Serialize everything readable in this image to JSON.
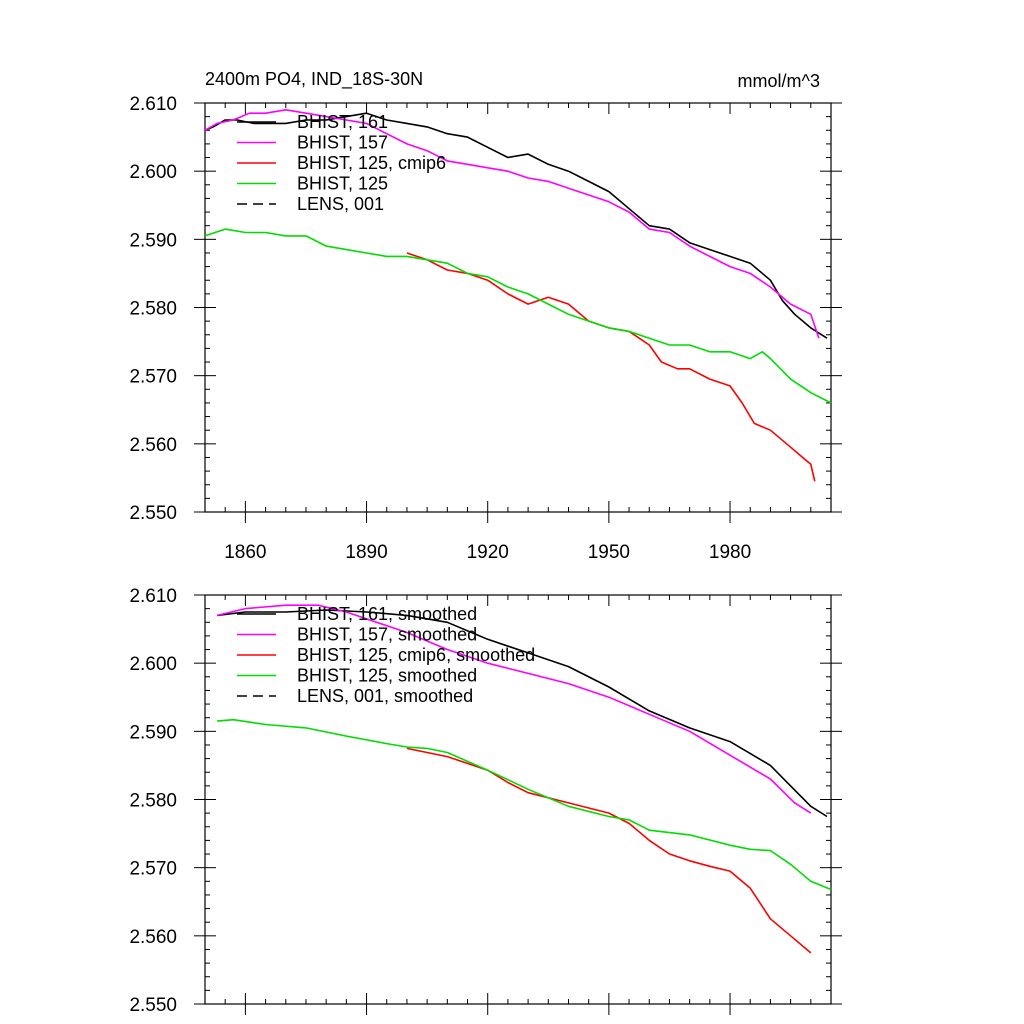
{
  "chart_data": [
    {
      "type": "line",
      "title": "2400m PO4, IND_18S-30N",
      "units": "mmol/m^3",
      "xlabel": "",
      "ylabel": "",
      "xlim": [
        1850,
        2005
      ],
      "ylim": [
        2.55,
        2.61
      ],
      "xticks": [
        1860,
        1890,
        1920,
        1950,
        1980
      ],
      "yticks": [
        "2.550",
        "2.560",
        "2.570",
        "2.580",
        "2.590",
        "2.600",
        "2.610"
      ],
      "show_xtick_labels": true,
      "grid": false,
      "legend_position": "top-left",
      "legend": [
        {
          "label": "BHIST, 161",
          "color": "#000000",
          "dash": "solid"
        },
        {
          "label": "BHIST, 157",
          "color": "#ff00ff",
          "dash": "solid"
        },
        {
          "label": "BHIST, 125, cmip6",
          "color": "#ff0000",
          "dash": "solid"
        },
        {
          "label": "BHIST, 125",
          "color": "#00dd00",
          "dash": "solid"
        },
        {
          "label": "LENS, 001",
          "color": "#000000",
          "dash": "dashed"
        }
      ],
      "series": [
        {
          "name": "BHIST, 161",
          "color": "#000000",
          "points": [
            [
              1850,
              2.606
            ],
            [
              1852,
              2.6065
            ],
            [
              1855,
              2.6075
            ],
            [
              1858,
              2.6075
            ],
            [
              1862,
              2.607
            ],
            [
              1866,
              2.607
            ],
            [
              1870,
              2.607
            ],
            [
              1875,
              2.6075
            ],
            [
              1880,
              2.6075
            ],
            [
              1885,
              2.608
            ],
            [
              1890,
              2.6085
            ],
            [
              1895,
              2.6075
            ],
            [
              1900,
              2.607
            ],
            [
              1905,
              2.6065
            ],
            [
              1910,
              2.6055
            ],
            [
              1915,
              2.605
            ],
            [
              1920,
              2.6035
            ],
            [
              1925,
              2.602
            ],
            [
              1930,
              2.6025
            ],
            [
              1935,
              2.601
            ],
            [
              1940,
              2.6
            ],
            [
              1945,
              2.5985
            ],
            [
              1950,
              2.597
            ],
            [
              1955,
              2.5945
            ],
            [
              1960,
              2.592
            ],
            [
              1965,
              2.5915
            ],
            [
              1970,
              2.5895
            ],
            [
              1975,
              2.5885
            ],
            [
              1980,
              2.5875
            ],
            [
              1985,
              2.5865
            ],
            [
              1990,
              2.584
            ],
            [
              1993,
              2.581
            ],
            [
              1996,
              2.579
            ],
            [
              2000,
              2.577
            ],
            [
              2004,
              2.5755
            ]
          ]
        },
        {
          "name": "BHIST, 157",
          "color": "#ff00ff",
          "points": [
            [
              1850,
              2.606
            ],
            [
              1853,
              2.607
            ],
            [
              1857,
              2.6075
            ],
            [
              1861,
              2.6085
            ],
            [
              1865,
              2.6085
            ],
            [
              1870,
              2.609
            ],
            [
              1875,
              2.6085
            ],
            [
              1880,
              2.608
            ],
            [
              1885,
              2.6075
            ],
            [
              1890,
              2.607
            ],
            [
              1895,
              2.6055
            ],
            [
              1900,
              2.604
            ],
            [
              1905,
              2.603
            ],
            [
              1910,
              2.6015
            ],
            [
              1915,
              2.601
            ],
            [
              1920,
              2.6005
            ],
            [
              1925,
              2.6
            ],
            [
              1930,
              2.599
            ],
            [
              1935,
              2.5985
            ],
            [
              1940,
              2.5975
            ],
            [
              1945,
              2.5965
            ],
            [
              1950,
              2.5955
            ],
            [
              1955,
              2.594
            ],
            [
              1960,
              2.5915
            ],
            [
              1965,
              2.591
            ],
            [
              1970,
              2.589
            ],
            [
              1975,
              2.5875
            ],
            [
              1980,
              2.586
            ],
            [
              1985,
              2.585
            ],
            [
              1990,
              2.583
            ],
            [
              1995,
              2.5805
            ],
            [
              2000,
              2.579
            ],
            [
              2002,
              2.5755
            ]
          ]
        },
        {
          "name": "BHIST, 125, cmip6",
          "color": "#ff0000",
          "points": [
            [
              1900,
              2.588
            ],
            [
              1905,
              2.587
            ],
            [
              1910,
              2.5855
            ],
            [
              1915,
              2.585
            ],
            [
              1920,
              2.584
            ],
            [
              1925,
              2.582
            ],
            [
              1930,
              2.5805
            ],
            [
              1935,
              2.5815
            ],
            [
              1940,
              2.5805
            ],
            [
              1945,
              2.578
            ],
            [
              1950,
              2.577
            ],
            [
              1955,
              2.5765
            ],
            [
              1960,
              2.5745
            ],
            [
              1963,
              2.572
            ],
            [
              1967,
              2.571
            ],
            [
              1970,
              2.571
            ],
            [
              1975,
              2.5695
            ],
            [
              1980,
              2.5685
            ],
            [
              1983,
              2.566
            ],
            [
              1986,
              2.563
            ],
            [
              1990,
              2.562
            ],
            [
              1995,
              2.5595
            ],
            [
              1998,
              2.558
            ],
            [
              2000,
              2.557
            ],
            [
              2001,
              2.5545
            ]
          ]
        },
        {
          "name": "BHIST, 125",
          "color": "#00dd00",
          "points": [
            [
              1850,
              2.5905
            ],
            [
              1855,
              2.5915
            ],
            [
              1860,
              2.591
            ],
            [
              1865,
              2.591
            ],
            [
              1870,
              2.5905
            ],
            [
              1875,
              2.5905
            ],
            [
              1880,
              2.589
            ],
            [
              1885,
              2.5885
            ],
            [
              1890,
              2.588
            ],
            [
              1895,
              2.5875
            ],
            [
              1900,
              2.5875
            ],
            [
              1905,
              2.587
            ],
            [
              1910,
              2.5865
            ],
            [
              1915,
              2.585
            ],
            [
              1920,
              2.5845
            ],
            [
              1925,
              2.583
            ],
            [
              1930,
              2.582
            ],
            [
              1935,
              2.5805
            ],
            [
              1940,
              2.579
            ],
            [
              1945,
              2.578
            ],
            [
              1950,
              2.577
            ],
            [
              1955,
              2.5765
            ],
            [
              1960,
              2.5755
            ],
            [
              1965,
              2.5745
            ],
            [
              1970,
              2.5745
            ],
            [
              1975,
              2.5735
            ],
            [
              1980,
              2.5735
            ],
            [
              1985,
              2.5725
            ],
            [
              1988,
              2.5735
            ],
            [
              1990,
              2.5725
            ],
            [
              1995,
              2.5695
            ],
            [
              2000,
              2.5675
            ],
            [
              2005,
              2.566
            ]
          ]
        }
      ]
    },
    {
      "type": "line",
      "title": "",
      "xlabel": "",
      "ylabel": "",
      "xlim": [
        1850,
        2005
      ],
      "ylim": [
        2.55,
        2.61
      ],
      "xticks": [
        1860,
        1890,
        1920,
        1950,
        1980
      ],
      "yticks": [
        "2.550",
        "2.560",
        "2.570",
        "2.580",
        "2.590",
        "2.600",
        "2.610"
      ],
      "show_xtick_labels": false,
      "grid": false,
      "legend_position": "top-left",
      "legend": [
        {
          "label": "BHIST, 161, smoothed",
          "color": "#000000",
          "dash": "solid"
        },
        {
          "label": "BHIST, 157, smoothed",
          "color": "#ff00ff",
          "dash": "solid"
        },
        {
          "label": "BHIST, 125, cmip6, smoothed",
          "color": "#ff0000",
          "dash": "solid"
        },
        {
          "label": "BHIST, 125, smoothed",
          "color": "#00dd00",
          "dash": "solid"
        },
        {
          "label": "LENS, 001, smoothed",
          "color": "#000000",
          "dash": "dashed"
        }
      ],
      "series": [
        {
          "name": "BHIST, 161, smoothed",
          "color": "#000000",
          "points": [
            [
              1853,
              2.607
            ],
            [
              1860,
              2.6075
            ],
            [
              1870,
              2.6075
            ],
            [
              1880,
              2.6078
            ],
            [
              1890,
              2.6075
            ],
            [
              1900,
              2.607
            ],
            [
              1910,
              2.606
            ],
            [
              1920,
              2.6035
            ],
            [
              1930,
              2.6015
            ],
            [
              1940,
              2.5995
            ],
            [
              1950,
              2.5965
            ],
            [
              1960,
              2.593
            ],
            [
              1970,
              2.5905
            ],
            [
              1980,
              2.5885
            ],
            [
              1990,
              2.585
            ],
            [
              1995,
              2.582
            ],
            [
              2000,
              2.579
            ],
            [
              2004,
              2.5775
            ]
          ]
        },
        {
          "name": "BHIST, 157, smoothed",
          "color": "#ff00ff",
          "points": [
            [
              1853,
              2.607
            ],
            [
              1860,
              2.608
            ],
            [
              1870,
              2.6085
            ],
            [
              1878,
              2.6085
            ],
            [
              1885,
              2.6075
            ],
            [
              1890,
              2.6065
            ],
            [
              1900,
              2.6045
            ],
            [
              1910,
              2.602
            ],
            [
              1920,
              2.6
            ],
            [
              1930,
              2.5985
            ],
            [
              1940,
              2.597
            ],
            [
              1950,
              2.595
            ],
            [
              1960,
              2.5925
            ],
            [
              1970,
              2.59
            ],
            [
              1980,
              2.5865
            ],
            [
              1990,
              2.583
            ],
            [
              1996,
              2.5795
            ],
            [
              2000,
              2.578
            ]
          ]
        },
        {
          "name": "BHIST, 125, cmip6, smoothed",
          "color": "#ff0000",
          "points": [
            [
              1900,
              2.5875
            ],
            [
              1910,
              2.5863
            ],
            [
              1920,
              2.5843
            ],
            [
              1925,
              2.5825
            ],
            [
              1930,
              2.581
            ],
            [
              1940,
              2.5795
            ],
            [
              1950,
              2.578
            ],
            [
              1955,
              2.5765
            ],
            [
              1960,
              2.574
            ],
            [
              1965,
              2.572
            ],
            [
              1970,
              2.571
            ],
            [
              1975,
              2.5702
            ],
            [
              1980,
              2.5695
            ],
            [
              1985,
              2.567
            ],
            [
              1990,
              2.5625
            ],
            [
              1995,
              2.56
            ],
            [
              2000,
              2.5575
            ]
          ]
        },
        {
          "name": "BHIST, 125, smoothed",
          "color": "#00dd00",
          "points": [
            [
              1853,
              2.5915
            ],
            [
              1857,
              2.5917
            ],
            [
              1865,
              2.591
            ],
            [
              1875,
              2.5905
            ],
            [
              1885,
              2.5893
            ],
            [
              1895,
              2.5882
            ],
            [
              1900,
              2.5877
            ],
            [
              1905,
              2.5875
            ],
            [
              1910,
              2.5869
            ],
            [
              1920,
              2.5843
            ],
            [
              1930,
              2.5815
            ],
            [
              1940,
              2.579
            ],
            [
              1950,
              2.5775
            ],
            [
              1955,
              2.577
            ],
            [
              1960,
              2.5755
            ],
            [
              1970,
              2.5748
            ],
            [
              1980,
              2.5733
            ],
            [
              1985,
              2.5727
            ],
            [
              1990,
              2.5725
            ],
            [
              1995,
              2.5705
            ],
            [
              2000,
              2.568
            ],
            [
              2005,
              2.5668
            ]
          ]
        }
      ]
    }
  ]
}
